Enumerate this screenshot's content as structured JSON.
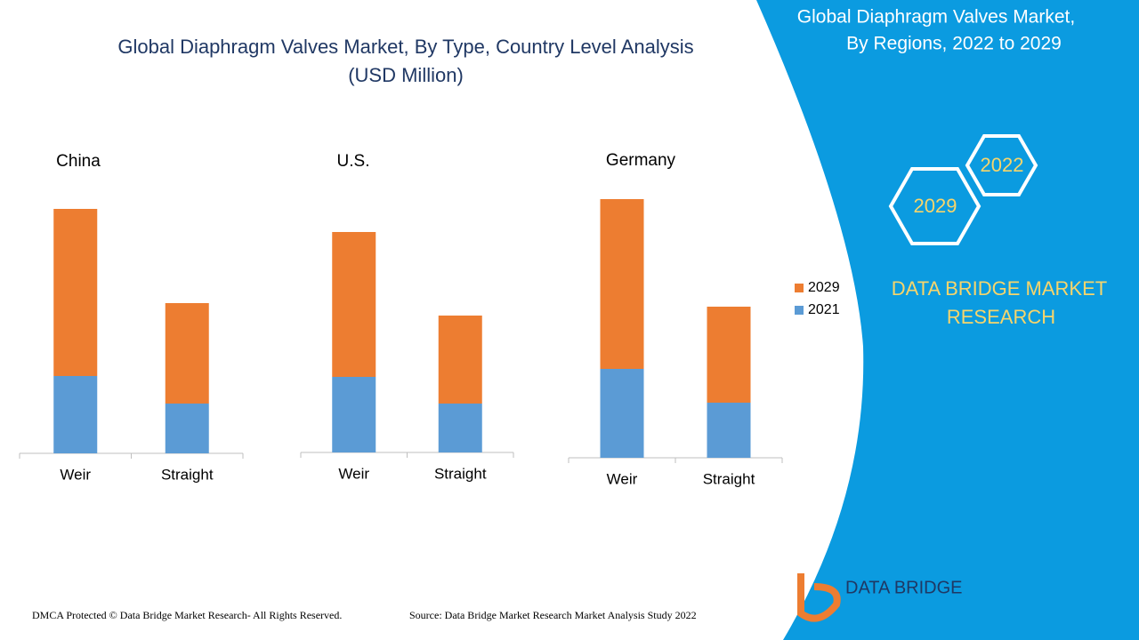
{
  "title": "Global Diaphragm Valves Market, By Type, Country Level Analysis",
  "subtitle": "(USD Million)",
  "panel": {
    "title_line1": "Global Diaphragm Valves Market,",
    "title_line2": "By Regions, 2022 to 2029",
    "hex_a": "2022",
    "hex_b": "2029",
    "brand_line1": "DATA BRIDGE MARKET",
    "brand_line2": "RESEARCH",
    "logo": "DATA BRIDGE"
  },
  "footer": {
    "left": "DMCA Protected © Data Bridge Market Research- All Rights Reserved.",
    "right": "Source: Data Bridge Market Research Market Analysis Study 2022"
  },
  "chart_data": [
    {
      "type": "bar",
      "stacked": true,
      "title": "China",
      "categories": [
        "Weir",
        "Straight"
      ],
      "series": [
        {
          "name": "2021",
          "color": "#5b9bd5",
          "values": [
            87,
            56
          ]
        },
        {
          "name": "2029",
          "color": "#ed7d31",
          "values": [
            188,
            113
          ]
        }
      ]
    },
    {
      "type": "bar",
      "stacked": true,
      "title": "U.S.",
      "categories": [
        "Weir",
        "Straight"
      ],
      "series": [
        {
          "name": "2021",
          "color": "#5b9bd5",
          "values": [
            85,
            55
          ]
        },
        {
          "name": "2029",
          "color": "#ed7d31",
          "values": [
            163,
            99
          ]
        }
      ]
    },
    {
      "type": "bar",
      "stacked": true,
      "title": "Germany",
      "categories": [
        "Weir",
        "Straight"
      ],
      "legend": "right",
      "series": [
        {
          "name": "2021",
          "color": "#5b9bd5",
          "values": [
            100,
            62
          ]
        },
        {
          "name": "2029",
          "color": "#ed7d31",
          "values": [
            191,
            108
          ]
        }
      ]
    }
  ]
}
